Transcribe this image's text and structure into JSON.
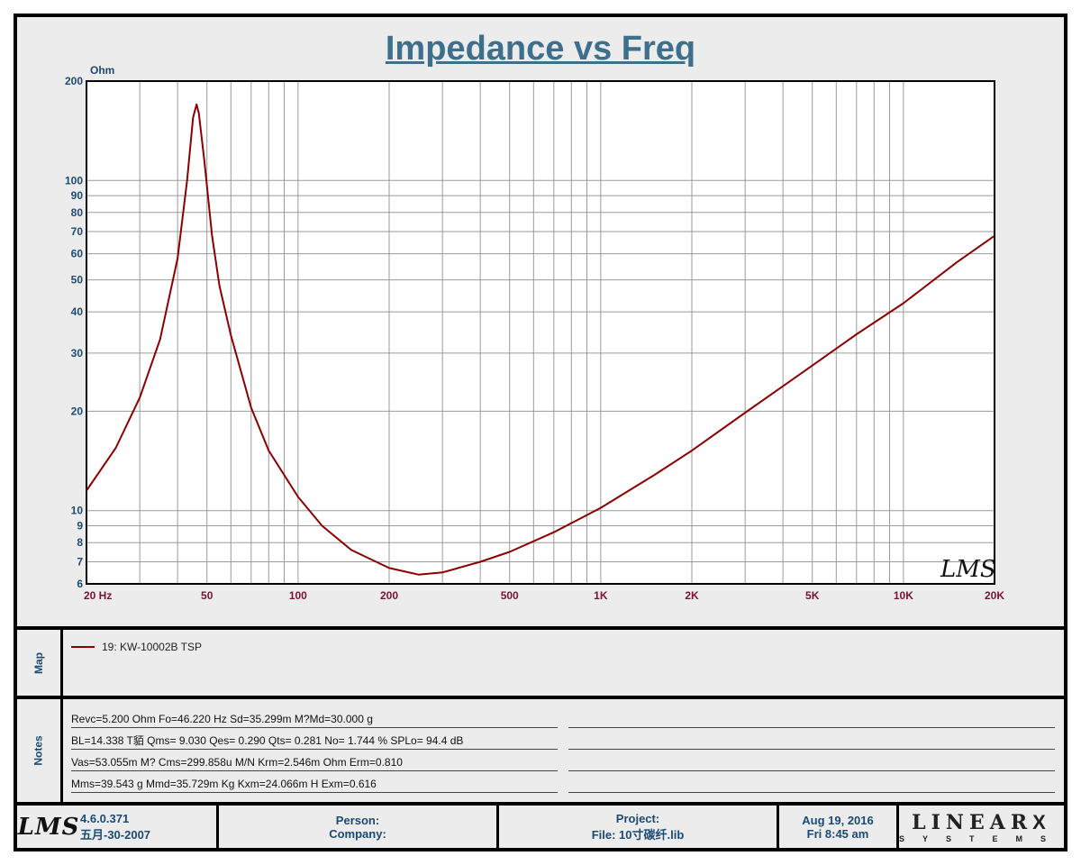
{
  "title": "Impedance vs Freq",
  "chart_data": {
    "type": "line",
    "title": "Impedance vs Freq",
    "ylabel": "Ohm",
    "xlabel": "",
    "x_scale": "log",
    "y_scale": "log",
    "xlim": [
      20,
      20000
    ],
    "ylim": [
      6,
      200
    ],
    "grid": true,
    "x_ticks": [
      {
        "v": 20,
        "label": "20  Hz"
      },
      {
        "v": 50,
        "label": "50"
      },
      {
        "v": 100,
        "label": "100"
      },
      {
        "v": 200,
        "label": "200"
      },
      {
        "v": 500,
        "label": "500"
      },
      {
        "v": 1000,
        "label": "1K"
      },
      {
        "v": 2000,
        "label": "2K"
      },
      {
        "v": 5000,
        "label": "5K"
      },
      {
        "v": 10000,
        "label": "10K"
      },
      {
        "v": 20000,
        "label": "20K"
      }
    ],
    "y_ticks": [
      {
        "v": 6,
        "label": "6"
      },
      {
        "v": 7,
        "label": "7"
      },
      {
        "v": 8,
        "label": "8"
      },
      {
        "v": 9,
        "label": "9"
      },
      {
        "v": 10,
        "label": "10"
      },
      {
        "v": 20,
        "label": "20"
      },
      {
        "v": 30,
        "label": "30"
      },
      {
        "v": 40,
        "label": "40"
      },
      {
        "v": 50,
        "label": "50"
      },
      {
        "v": 60,
        "label": "60"
      },
      {
        "v": 70,
        "label": "70"
      },
      {
        "v": 80,
        "label": "80"
      },
      {
        "v": 90,
        "label": "90"
      },
      {
        "v": 100,
        "label": "100"
      },
      {
        "v": 200,
        "label": "200"
      }
    ],
    "series": [
      {
        "name": "19: KW-10002B  TSP",
        "color": "#8b0000",
        "x": [
          20,
          25,
          30,
          35,
          40,
          43,
          45,
          46.22,
          47,
          49,
          52,
          55,
          60,
          70,
          80,
          100,
          120,
          150,
          200,
          250,
          300,
          400,
          500,
          700,
          1000,
          1500,
          2000,
          3000,
          5000,
          7000,
          10000,
          15000,
          20000
        ],
        "y": [
          11.5,
          15.5,
          22,
          33,
          58,
          100,
          155,
          170,
          160,
          115,
          68,
          48,
          34,
          20.5,
          15.2,
          11,
          9,
          7.6,
          6.7,
          6.4,
          6.5,
          7.0,
          7.5,
          8.6,
          10.2,
          12.8,
          15.2,
          19.8,
          27.5,
          34.2,
          42.5,
          56.5,
          68
        ]
      }
    ]
  },
  "watermark": "LMS",
  "map": {
    "label": "Map",
    "legend": "19: KW-10002B  TSP",
    "legend_color": "#8b0000"
  },
  "notes": {
    "label": "Notes",
    "lines": [
      "Revc=5.200 Ohm  Fo=46.220 Hz  Sd=35.299m M?Md=30.000 g",
      "BL=14.338 T貊  Qms= 9.030  Qes= 0.290  Qts= 0.281  No= 1.744 %  SPLo= 94.4 dB",
      "Vas=53.055m M? Cms=299.858u M/N  Krm=2.546m Ohm  Erm=0.810",
      "Mms=39.543 g  Mmd=35.729m Kg  Kxm=24.066m H  Exm=0.616"
    ]
  },
  "footer": {
    "logo": "LMS",
    "version": "4.6.0.371",
    "date_built": "五月-30-2007",
    "person": "Person:",
    "company": "Company:",
    "project": "Project:",
    "file": "File: 10寸碳纤.lib",
    "date": "Aug 19, 2016",
    "time": "Fri  8:45 am",
    "brand": "LINEAR",
    "brand_x": "X",
    "brand_sub": "SYSTEMS"
  },
  "colors": {
    "title": "#3e6f8c",
    "axis_labels": "#1b4a74",
    "x_tick_labels": "#7a1230",
    "curve": "#8b0000"
  }
}
